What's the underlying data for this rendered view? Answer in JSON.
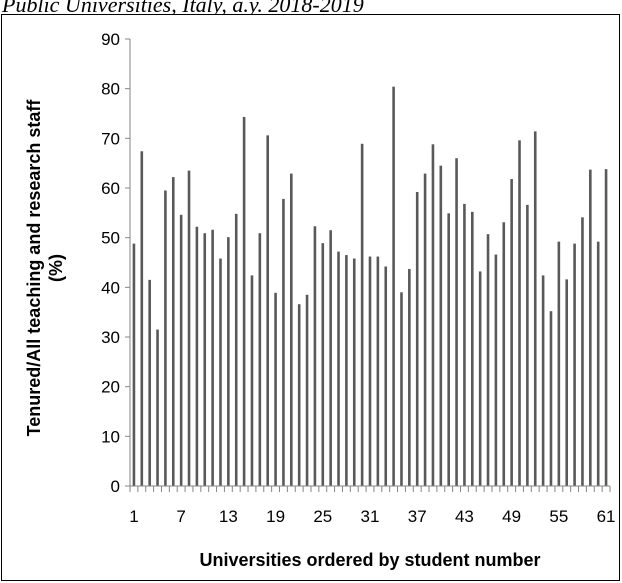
{
  "caption": "Public Universities, Italy, a.y. 2018-2019",
  "chart_data": {
    "type": "bar",
    "xlabel": "Universities ordered by student number",
    "ylabel_line1": "Tenured/All teaching and research staff",
    "ylabel_line2": "(%)",
    "ylim": [
      0,
      90
    ],
    "yticks": [
      0,
      10,
      20,
      30,
      40,
      50,
      60,
      70,
      80,
      90
    ],
    "xtick_labels": [
      "1",
      "7",
      "13",
      "19",
      "25",
      "31",
      "37",
      "43",
      "49",
      "55",
      "61"
    ],
    "bar_color": "#595959",
    "categories": [
      "1",
      "2",
      "3",
      "4",
      "5",
      "6",
      "7",
      "8",
      "9",
      "10",
      "11",
      "12",
      "13",
      "14",
      "15",
      "16",
      "17",
      "18",
      "19",
      "20",
      "21",
      "22",
      "23",
      "24",
      "25",
      "26",
      "27",
      "28",
      "29",
      "30",
      "31",
      "32",
      "33",
      "34",
      "35",
      "36",
      "37",
      "38",
      "39",
      "40",
      "41",
      "42",
      "43",
      "44",
      "45",
      "46",
      "47",
      "48",
      "49",
      "50",
      "51",
      "52",
      "53",
      "54",
      "55",
      "56",
      "57",
      "58",
      "59",
      "60",
      "61"
    ],
    "values": [
      48.8,
      67.4,
      41.5,
      31.5,
      59.5,
      62.2,
      54.6,
      63.5,
      52.2,
      50.9,
      51.6,
      45.8,
      50.1,
      54.8,
      74.3,
      42.4,
      50.9,
      70.6,
      38.9,
      57.8,
      62.9,
      36.6,
      38.5,
      52.3,
      48.9,
      51.5,
      47.2,
      46.5,
      45.8,
      68.9,
      46.2,
      46.2,
      44.2,
      80.4,
      39.0,
      43.7,
      59.2,
      62.9,
      68.8,
      64.5,
      54.9,
      66.0,
      56.8,
      55.2,
      43.2,
      50.7,
      46.6,
      53.1,
      61.8,
      69.6,
      56.6,
      71.4,
      42.4,
      35.2,
      49.2,
      41.6,
      48.8,
      54.1,
      63.7,
      49.2,
      63.8
    ]
  }
}
